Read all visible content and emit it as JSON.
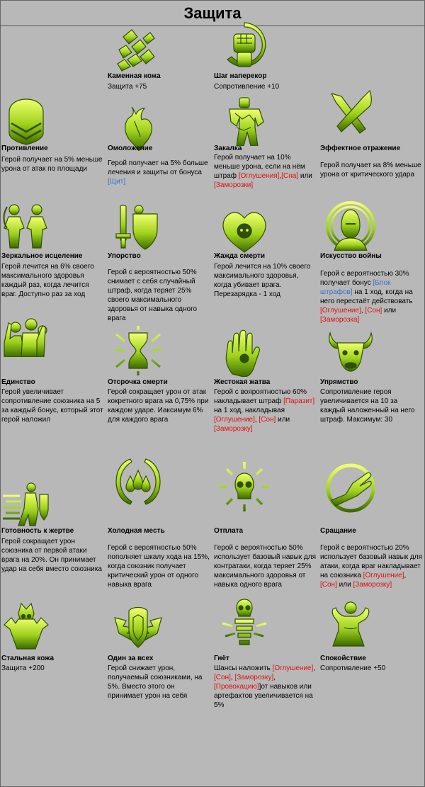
{
  "page": {
    "title": "Защита"
  },
  "colors": {
    "background": "#b8b8b8",
    "icon_light": "#e6f55c",
    "icon_dark": "#3d6200",
    "icon_mid": "#8cc41a",
    "link_blue": "#3a6fd0",
    "link_red": "#e01010"
  },
  "skills": [
    {
      "id": "stone",
      "name": "Каменная кожа",
      "icon": "stone-skin-icon",
      "desc": [
        {
          "t": "Защита +75"
        }
      ]
    },
    {
      "id": "defy",
      "name": "Шаг наперекор",
      "icon": "raised-fist-icon",
      "desc": [
        {
          "t": "Сопротивление +10"
        }
      ]
    },
    {
      "id": "resist",
      "name": "Противление",
      "icon": "chevron-shield-icon",
      "desc": [
        {
          "t": "Герой получает на 5% меньше урона от атак по площади"
        }
      ]
    },
    {
      "id": "rejuv",
      "name": "Омоложение",
      "icon": "heart-organ-icon",
      "desc": [
        {
          "t": "Герой получает на 5% больше лечения и защиты от бонуса "
        },
        {
          "t": "[Щит]",
          "c": "blue"
        }
      ]
    },
    {
      "id": "harden",
      "name": "Закалка",
      "icon": "stone-warrior-icon",
      "desc": [
        {
          "t": "Герой получает на 10% меньше урона, если на нём штраф "
        },
        {
          "t": "[Оглушения]",
          "c": "red"
        },
        {
          "t": ","
        },
        {
          "t": "[Сна]",
          "c": "red"
        },
        {
          "t": " или "
        },
        {
          "t": "[Заморозки]",
          "c": "red"
        }
      ]
    },
    {
      "id": "reflect",
      "name": "Эффектное отражение",
      "icon": "crossed-blades-icon",
      "desc": [
        {
          "t": "Герой получает на 8% меньше урона от критического удара"
        }
      ]
    },
    {
      "id": "mirror",
      "name": "Зеркальное исцеление",
      "icon": "mirror-figures-icon",
      "desc": [
        {
          "t": "Герой лечится на 6% своего максимального здоровья каждый раз, когда лечится враг. Доступно раз за ход"
        }
      ]
    },
    {
      "id": "persist",
      "name": "Упорство",
      "icon": "sword-shield-icon",
      "desc": [
        {
          "t": "Герой с вероятностью 50% снимает с себя случайный штраф, когда теряет 25% своего максимального здоровья от навыка одного врага"
        }
      ]
    },
    {
      "id": "deathlust",
      "name": "Жажда смерти",
      "icon": "skull-heart-icon",
      "desc": [
        {
          "t": "Герой лечится на 10% своего максимального здоровья, когда убивает врага. Перезарядка - 1 ход"
        }
      ]
    },
    {
      "id": "artwar",
      "name": "Искусство войны",
      "icon": "helmed-head-icon",
      "desc": [
        {
          "t": "Герой с вероятностью 30% получает бонус "
        },
        {
          "t": "[Блок штрафов]",
          "c": "blue"
        },
        {
          "t": " на 1 ход, когда на него перестаёт действовать "
        },
        {
          "t": "[Оглушение]",
          "c": "red"
        },
        {
          "t": ", "
        },
        {
          "t": "[Сон]",
          "c": "red"
        },
        {
          "t": " или "
        },
        {
          "t": "[Заморозка]",
          "c": "red"
        }
      ]
    },
    {
      "id": "unity",
      "name": "Единство",
      "icon": "raised-crowd-icon",
      "desc": [
        {
          "t": "Герой увеличивает сопротивление союзника на 5 за каждый бонус, который этот герой наложил"
        }
      ]
    },
    {
      "id": "delay",
      "name": "Отсрочка смерти",
      "icon": "hourglass-icon",
      "desc": [
        {
          "t": "Герой сокращает урон от атак кокретного врага на 0,75% при каждом ударе. Иаксимум 6% для каждого врага"
        }
      ]
    },
    {
      "id": "harvest",
      "name": "Жестокая жатва",
      "icon": "grasping-hand-icon",
      "desc": [
        {
          "t": "Герой с вояроятностью 60% накладывает штраф "
        },
        {
          "t": "[Паразит]",
          "c": "red"
        },
        {
          "t": " на 1 ход, накладывая "
        },
        {
          "t": "[Оглушение]",
          "c": "red"
        },
        {
          "t": ", "
        },
        {
          "t": "[Сон]",
          "c": "red"
        },
        {
          "t": " или "
        },
        {
          "t": "[Заморозку]",
          "c": "red"
        }
      ]
    },
    {
      "id": "stubborn",
      "name": "Упрямство",
      "icon": "bull-head-icon",
      "desc": [
        {
          "t": "Сопротивление героя увеличивается на 10 за каждый наложенный на него штраф. Максимум: 30"
        }
      ]
    },
    {
      "id": "sacrifice",
      "name": "Готовность к жертве",
      "icon": "dashing-shield-icon",
      "desc": [
        {
          "t": "Герой сокращает урон союзника от первой атаки врага на 20%. Он принимает удар на себя вместо союзника"
        }
      ]
    },
    {
      "id": "coldrev",
      "name": "Холодная месть",
      "icon": "drops-claws-icon",
      "desc": [
        {
          "t": "Герой с вероятностью 50% пополняет шкалу хода на 15%, когда союзник получает критический урон от одного навыка врага"
        }
      ]
    },
    {
      "id": "payback",
      "name": "Отплата",
      "icon": "sun-skull-icon",
      "desc": [
        {
          "t": "Герой с вероятностью 50% использует базовый навык для контратаки, когда теряет 25% максимального здоровья от навыка одного врага"
        }
      ]
    },
    {
      "id": "growth",
      "name": "Сращание",
      "icon": "hand-circle-icon",
      "desc": [
        {
          "t": "Герой с вероятностью 20% использует базовый навык для атаки, когда враг накладывает на союзника "
        },
        {
          "t": "[Оглушение]",
          "c": "red"
        },
        {
          "t": ","
        },
        {
          "t": "[Сон]",
          "c": "red"
        },
        {
          "t": " или "
        },
        {
          "t": "[Заморозку]",
          "c": "red"
        }
      ]
    },
    {
      "id": "steel",
      "name": "Стальная кожа",
      "icon": "spiked-warrior-icon",
      "desc": [
        {
          "t": "Защита +200"
        }
      ]
    },
    {
      "id": "oneall",
      "name": "Один за всех",
      "icon": "winged-shield-icon",
      "desc": [
        {
          "t": "Герой снижает урон, получаемый союзниками, на 5%. Вместо этого он принимает урон на себя"
        }
      ]
    },
    {
      "id": "oppress",
      "name": "Гнёт",
      "icon": "skull-totem-icon",
      "desc": [
        {
          "t": "Шансы наложить "
        },
        {
          "t": "[Оглушение]",
          "c": "red"
        },
        {
          "t": ", "
        },
        {
          "t": "[Сон]",
          "c": "red"
        },
        {
          "t": ", "
        },
        {
          "t": "[Заморозку]",
          "c": "red"
        },
        {
          "t": ", "
        },
        {
          "t": "[Провокацию]",
          "c": "red"
        },
        {
          "t": "]от навыков или артефактов увеличивается на 5%"
        }
      ]
    },
    {
      "id": "calm",
      "name": "Спокойствие",
      "icon": "meditating-figure-icon",
      "desc": [
        {
          "t": "Сопротивление +50"
        }
      ]
    }
  ]
}
